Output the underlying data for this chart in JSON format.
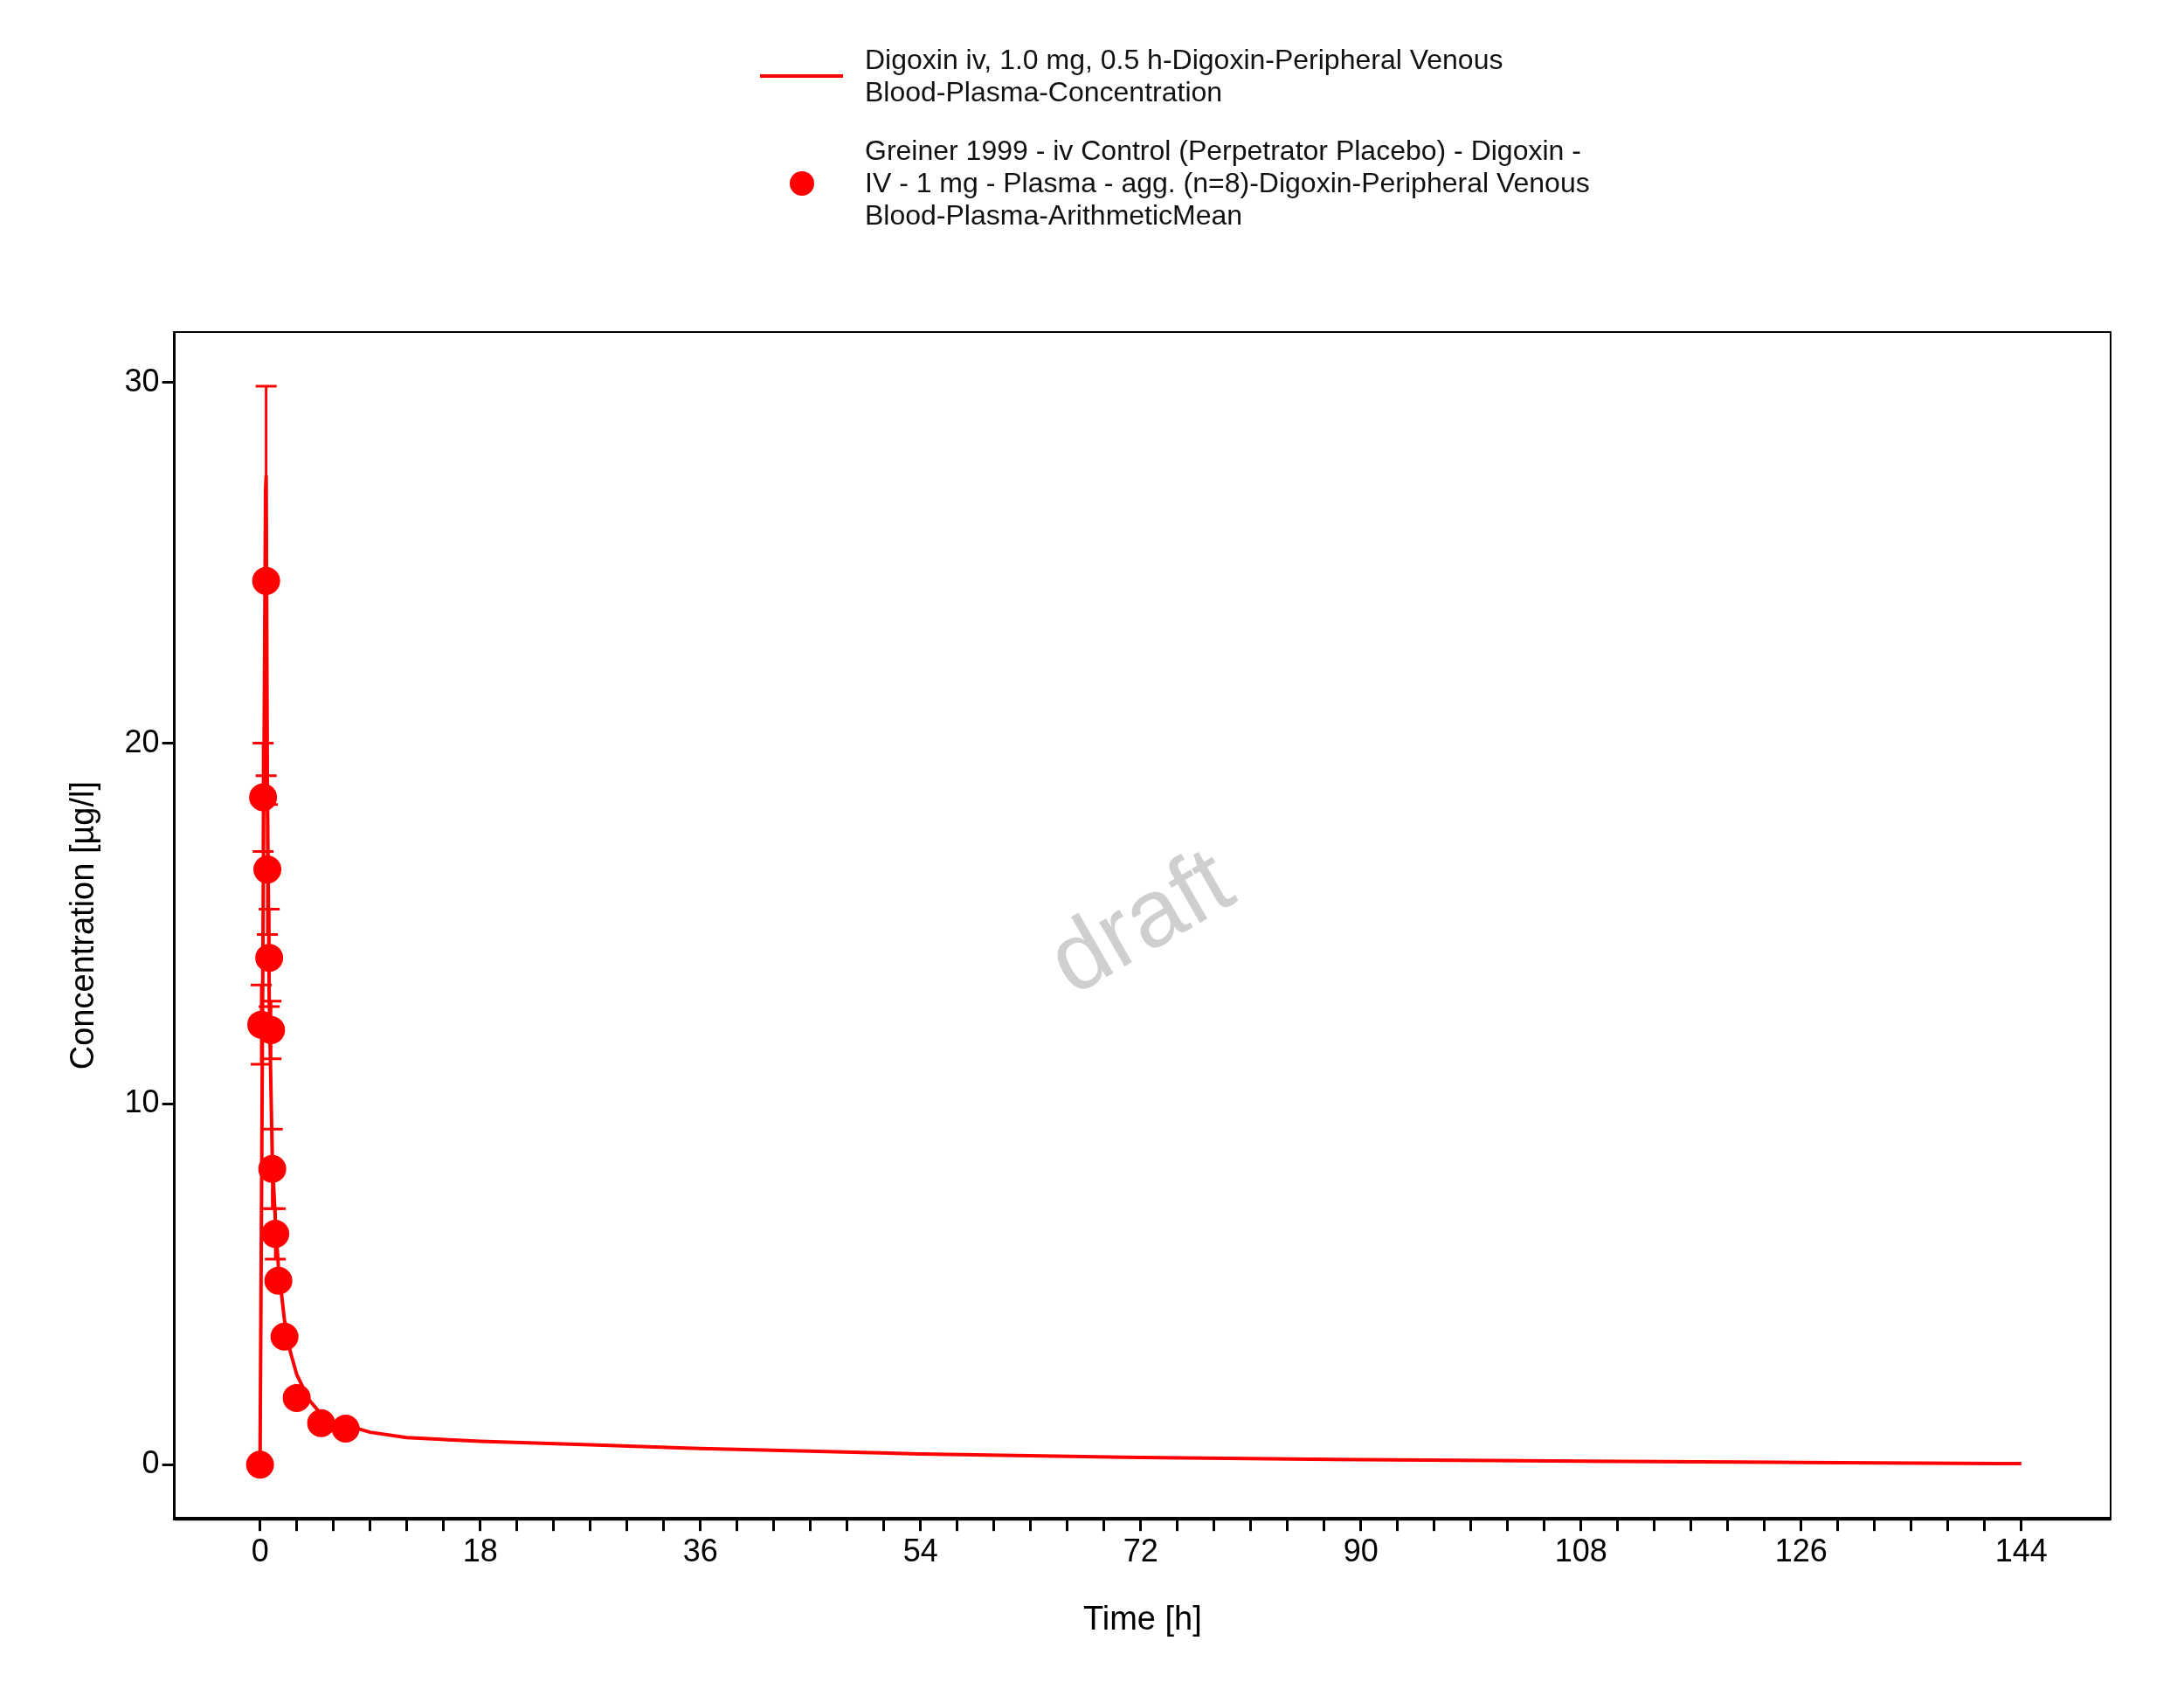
{
  "chart_data": {
    "type": "line",
    "xlabel": "Time [h]",
    "ylabel": "Concentration [µg/l]",
    "xlim": [
      -7,
      151.3
    ],
    "ylim": [
      -1.5,
      31.4
    ],
    "xticks": [
      0,
      {
        "value": 3,
        "label": null
      },
      {
        "value": 6,
        "label": null
      },
      {
        "value": 9,
        "label": null
      },
      {
        "value": 12,
        "label": null
      },
      {
        "value": 15,
        "label": null
      },
      18,
      {
        "value": 21,
        "label": null
      },
      {
        "value": 24,
        "label": null
      },
      {
        "value": 27,
        "label": null
      },
      {
        "value": 30,
        "label": null
      },
      {
        "value": 33,
        "label": null
      },
      36,
      {
        "value": 39,
        "label": null
      },
      {
        "value": 42,
        "label": null
      },
      {
        "value": 45,
        "label": null
      },
      {
        "value": 48,
        "label": null
      },
      {
        "value": 51,
        "label": null
      },
      54,
      {
        "value": 57,
        "label": null
      },
      {
        "value": 60,
        "label": null
      },
      {
        "value": 63,
        "label": null
      },
      {
        "value": 66,
        "label": null
      },
      {
        "value": 69,
        "label": null
      },
      72,
      {
        "value": 75,
        "label": null
      },
      {
        "value": 78,
        "label": null
      },
      {
        "value": 81,
        "label": null
      },
      {
        "value": 84,
        "label": null
      },
      {
        "value": 87,
        "label": null
      },
      90,
      {
        "value": 93,
        "label": null
      },
      {
        "value": 96,
        "label": null
      },
      {
        "value": 99,
        "label": null
      },
      {
        "value": 102,
        "label": null
      },
      {
        "value": 105,
        "label": null
      },
      108,
      {
        "value": 111,
        "label": null
      },
      {
        "value": 114,
        "label": null
      },
      {
        "value": 117,
        "label": null
      },
      {
        "value": 120,
        "label": null
      },
      {
        "value": 123,
        "label": null
      },
      126,
      {
        "value": 129,
        "label": null
      },
      {
        "value": 132,
        "label": null
      },
      {
        "value": 135,
        "label": null
      },
      {
        "value": 138,
        "label": null
      },
      {
        "value": 141,
        "label": null
      },
      144
    ],
    "yticks": [
      0,
      10,
      20,
      30
    ],
    "grid": false,
    "legend": "top",
    "annotations": [
      "draft"
    ],
    "series": [
      {
        "name": "Digoxin iv, 1.0 mg, 0.5 h-Digoxin-Peripheral Venous Blood-Plasma-Concentration",
        "type": "line",
        "color": "#ff0000",
        "marker": "none",
        "line_style": "solid",
        "x": [
          0,
          0.02,
          0.45,
          0.5,
          0.6,
          0.75,
          1,
          1.25,
          1.5,
          2,
          2.5,
          3,
          4,
          5,
          6,
          7,
          9,
          12,
          18,
          27,
          36,
          54,
          72,
          90,
          108,
          126,
          144
        ],
        "values": [
          0,
          0,
          27,
          27.4,
          19,
          13,
          8.5,
          6.8,
          5.5,
          4,
          3.1,
          2.5,
          1.8,
          1.4,
          1.2,
          1.1,
          0.9,
          0.75,
          0.65,
          0.55,
          0.45,
          0.3,
          0.2,
          0.14,
          0.1,
          0.06,
          0.03
        ]
      },
      {
        "name": "Greiner 1999 - iv Control (Perpetrator Placebo) - Digoxin - IV - 1 mg - Plasma - agg. (n=8)-Digoxin-Peripheral Venous Blood-Plasma-ArithmeticMean",
        "type": "scatter",
        "color": "#ff0000",
        "marker": "circle",
        "x": [
          0,
          0.1,
          0.25,
          0.5,
          0.6,
          0.75,
          0.9,
          1,
          1.25,
          1.5,
          2,
          3,
          5,
          7
        ],
        "values": [
          0,
          12.2,
          18.5,
          24.5,
          16.5,
          14.05,
          12.05,
          8.2,
          6.4,
          5.1,
          3.55,
          1.85,
          1.15,
          1.0
        ],
        "errors": [
          null,
          1.1,
          1.5,
          5.4,
          1.8,
          1.35,
          0.8,
          1.1,
          0.7,
          null,
          null,
          null,
          null,
          null
        ]
      }
    ]
  }
}
